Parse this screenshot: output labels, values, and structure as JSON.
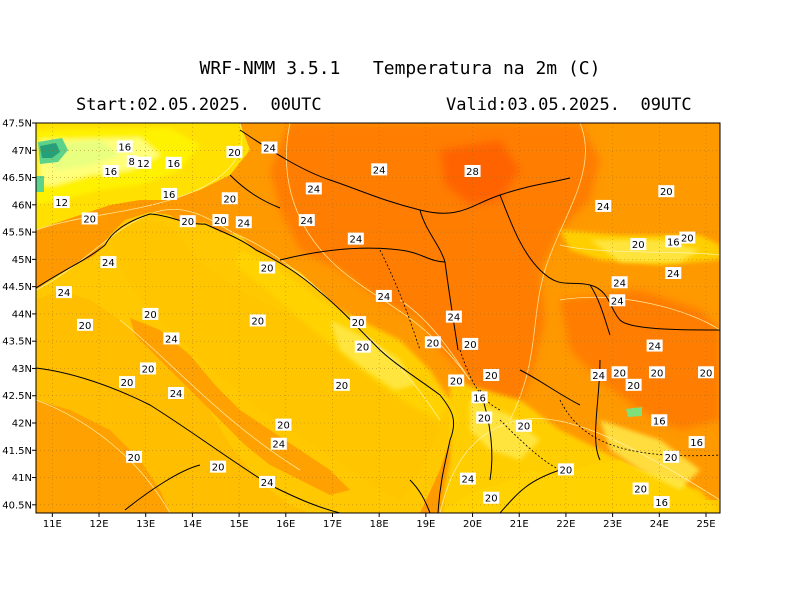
{
  "header": {
    "title": "WRF-NMM 3.5.1   Temperatura na 2m (C)",
    "start": "Start:02.05.2025.  00UTC",
    "valid": "Valid:03.05.2025.  09UTC"
  },
  "map": {
    "lat_ticks": [
      "47.5N",
      "47N",
      "46.5N",
      "46N",
      "45.5N",
      "45N",
      "44.5N",
      "44N",
      "43.5N",
      "43N",
      "42.5N",
      "42N",
      "41.5N",
      "41N",
      "40.5N"
    ],
    "lon_ticks": [
      "11E",
      "12E",
      "13E",
      "14E",
      "15E",
      "16E",
      "17E",
      "18E",
      "19E",
      "20E",
      "21E",
      "22E",
      "23E",
      "24E",
      "25E"
    ],
    "contour_labels": [
      {
        "t": "16",
        "lon": 12.55,
        "lat": 47.07
      },
      {
        "t": "20",
        "lon": 14.9,
        "lat": 46.97
      },
      {
        "t": "24",
        "lon": 15.65,
        "lat": 47.05
      },
      {
        "t": "8",
        "lon": 12.7,
        "lat": 46.8
      },
      {
        "t": "12",
        "lon": 12.95,
        "lat": 46.77
      },
      {
        "t": "16",
        "lon": 13.6,
        "lat": 46.77
      },
      {
        "t": "16",
        "lon": 12.25,
        "lat": 46.62
      },
      {
        "t": "24",
        "lon": 18.0,
        "lat": 46.65
      },
      {
        "t": "28",
        "lon": 20.0,
        "lat": 46.62
      },
      {
        "t": "24",
        "lon": 16.6,
        "lat": 46.3
      },
      {
        "t": "16",
        "lon": 13.5,
        "lat": 46.2
      },
      {
        "t": "20",
        "lon": 14.8,
        "lat": 46.12
      },
      {
        "t": "20",
        "lon": 24.15,
        "lat": 46.25
      },
      {
        "t": "12",
        "lon": 11.2,
        "lat": 46.05
      },
      {
        "t": "24",
        "lon": 22.8,
        "lat": 45.98
      },
      {
        "t": "20",
        "lon": 11.8,
        "lat": 45.75
      },
      {
        "t": "20",
        "lon": 13.9,
        "lat": 45.7
      },
      {
        "t": "20",
        "lon": 14.6,
        "lat": 45.72
      },
      {
        "t": "24",
        "lon": 15.1,
        "lat": 45.68
      },
      {
        "t": "24",
        "lon": 16.45,
        "lat": 45.72
      },
      {
        "t": "24",
        "lon": 17.5,
        "lat": 45.38
      },
      {
        "t": "20",
        "lon": 23.55,
        "lat": 45.28
      },
      {
        "t": "16",
        "lon": 24.3,
        "lat": 45.33
      },
      {
        "t": "20",
        "lon": 24.6,
        "lat": 45.4
      },
      {
        "t": "24",
        "lon": 12.2,
        "lat": 44.95
      },
      {
        "t": "20",
        "lon": 15.6,
        "lat": 44.85
      },
      {
        "t": "24",
        "lon": 24.3,
        "lat": 44.75
      },
      {
        "t": "24",
        "lon": 11.25,
        "lat": 44.4
      },
      {
        "t": "24",
        "lon": 18.1,
        "lat": 44.33
      },
      {
        "t": "24",
        "lon": 23.15,
        "lat": 44.58
      },
      {
        "t": "24",
        "lon": 23.1,
        "lat": 44.25
      },
      {
        "t": "20",
        "lon": 13.1,
        "lat": 44.0
      },
      {
        "t": "20",
        "lon": 15.4,
        "lat": 43.88
      },
      {
        "t": "20",
        "lon": 17.55,
        "lat": 43.85
      },
      {
        "t": "24",
        "lon": 19.6,
        "lat": 43.95
      },
      {
        "t": "20",
        "lon": 11.7,
        "lat": 43.8
      },
      {
        "t": "24",
        "lon": 13.55,
        "lat": 43.55
      },
      {
        "t": "20",
        "lon": 17.65,
        "lat": 43.4
      },
      {
        "t": "20",
        "lon": 19.15,
        "lat": 43.48
      },
      {
        "t": "20",
        "lon": 19.95,
        "lat": 43.45
      },
      {
        "t": "24",
        "lon": 23.9,
        "lat": 43.42
      },
      {
        "t": "20",
        "lon": 13.05,
        "lat": 43.0
      },
      {
        "t": "20",
        "lon": 20.4,
        "lat": 42.88
      },
      {
        "t": "24",
        "lon": 22.7,
        "lat": 42.88
      },
      {
        "t": "20",
        "lon": 23.15,
        "lat": 42.93
      },
      {
        "t": "20",
        "lon": 23.95,
        "lat": 42.93
      },
      {
        "t": "20",
        "lon": 25.0,
        "lat": 42.93
      },
      {
        "t": "20",
        "lon": 12.6,
        "lat": 42.75
      },
      {
        "t": "20",
        "lon": 17.2,
        "lat": 42.7
      },
      {
        "t": "20",
        "lon": 19.65,
        "lat": 42.78
      },
      {
        "t": "20",
        "lon": 23.45,
        "lat": 42.7
      },
      {
        "t": "24",
        "lon": 13.65,
        "lat": 42.55
      },
      {
        "t": "16",
        "lon": 20.15,
        "lat": 42.47
      },
      {
        "t": "20",
        "lon": 20.25,
        "lat": 42.1
      },
      {
        "t": "16",
        "lon": 24.0,
        "lat": 42.05
      },
      {
        "t": "20",
        "lon": 21.1,
        "lat": 41.95
      },
      {
        "t": "20",
        "lon": 15.95,
        "lat": 41.97
      },
      {
        "t": "24",
        "lon": 15.85,
        "lat": 41.62
      },
      {
        "t": "16",
        "lon": 24.8,
        "lat": 41.65
      },
      {
        "t": "20",
        "lon": 12.75,
        "lat": 41.38
      },
      {
        "t": "20",
        "lon": 24.25,
        "lat": 41.38
      },
      {
        "t": "20",
        "lon": 14.55,
        "lat": 41.2
      },
      {
        "t": "20",
        "lon": 22.0,
        "lat": 41.15
      },
      {
        "t": "24",
        "lon": 19.9,
        "lat": 40.98
      },
      {
        "t": "24",
        "lon": 15.6,
        "lat": 40.92
      },
      {
        "t": "20",
        "lon": 23.6,
        "lat": 40.8
      },
      {
        "t": "20",
        "lon": 20.4,
        "lat": 40.63
      },
      {
        "t": "16",
        "lon": 24.05,
        "lat": 40.55
      }
    ],
    "colors": {
      "bg_yellow": "#ffc800",
      "sea": "#ffbe00",
      "land_orange": "#ff9900",
      "hot_orange": "#ff7d00",
      "hottest": "#ff6000",
      "cool_yellow": "#fff000",
      "pale_yellow": "#ffff80",
      "green": "#5cd28a",
      "teal": "#24a07a",
      "lines": "#000000",
      "contour": "#fff4b0"
    }
  }
}
